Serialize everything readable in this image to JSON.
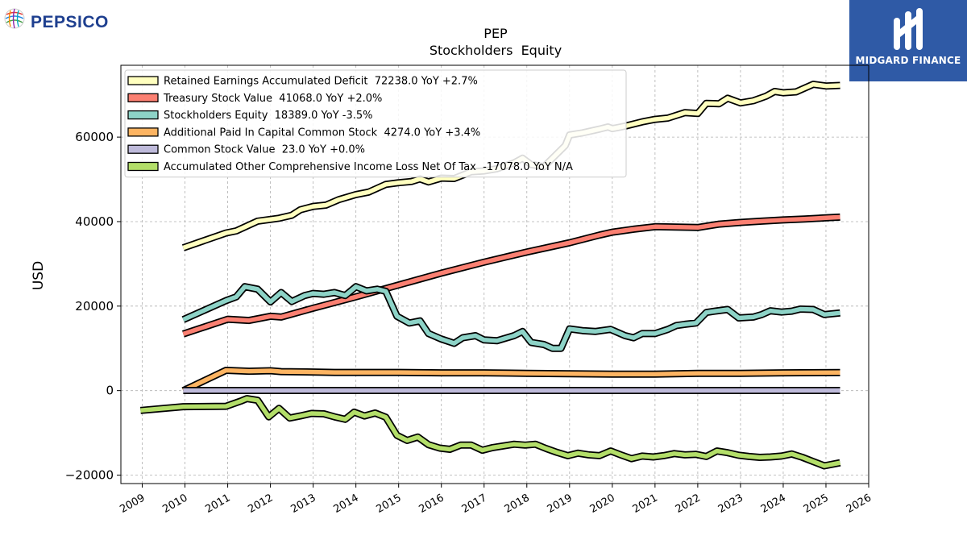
{
  "logos": {
    "left_brand": "PEPSICO",
    "right_brand": "MIDGARD FINANCE"
  },
  "chart_data": {
    "type": "line",
    "title": "PEP",
    "subtitle": "Stockholders  Equity",
    "xlabel": "",
    "ylabel": "USD",
    "xlim": [
      2008.5,
      2026.0
    ],
    "ylim": [
      -22000,
      77000
    ],
    "x_ticks": [
      2009,
      2010,
      2011,
      2012,
      2013,
      2014,
      2015,
      2016,
      2017,
      2018,
      2019,
      2020,
      2021,
      2022,
      2023,
      2024,
      2025,
      2026
    ],
    "y_ticks": [
      -20000,
      0,
      20000,
      40000,
      60000
    ],
    "y_tick_labels": [
      "−20000",
      "0",
      "20000",
      "40000",
      "60000"
    ],
    "grid": true,
    "legend_position": "top-left",
    "series": [
      {
        "name": "Retained Earnings Accumulated Deficit  72238.0 YoY +2.7%",
        "color": "#ffffbf",
        "points": [
          [
            2009.96,
            33800
          ],
          [
            2010.96,
            37300
          ],
          [
            2011.2,
            37800
          ],
          [
            2011.7,
            40100
          ],
          [
            2012.2,
            40800
          ],
          [
            2012.5,
            41500
          ],
          [
            2012.7,
            42800
          ],
          [
            2013.0,
            43600
          ],
          [
            2013.3,
            43900
          ],
          [
            2013.6,
            45200
          ],
          [
            2014.0,
            46400
          ],
          [
            2014.3,
            47000
          ],
          [
            2014.7,
            48800
          ],
          [
            2015.0,
            49200
          ],
          [
            2015.3,
            49500
          ],
          [
            2015.5,
            50100
          ],
          [
            2015.7,
            49400
          ],
          [
            2016.0,
            50300
          ],
          [
            2016.3,
            50200
          ],
          [
            2016.7,
            51800
          ],
          [
            2017.0,
            52000
          ],
          [
            2017.3,
            52500
          ],
          [
            2017.7,
            53900
          ],
          [
            2017.9,
            55000
          ],
          [
            2018.1,
            53500
          ],
          [
            2018.4,
            53000
          ],
          [
            2018.7,
            56000
          ],
          [
            2018.9,
            58000
          ],
          [
            2019.0,
            60500
          ],
          [
            2019.3,
            61000
          ],
          [
            2019.7,
            61900
          ],
          [
            2019.9,
            62400
          ],
          [
            2020.0,
            62000
          ],
          [
            2020.3,
            62600
          ],
          [
            2020.7,
            63600
          ],
          [
            2021.0,
            64200
          ],
          [
            2021.3,
            64500
          ],
          [
            2021.7,
            65800
          ],
          [
            2022.0,
            65600
          ],
          [
            2022.2,
            68000
          ],
          [
            2022.5,
            67900
          ],
          [
            2022.7,
            69200
          ],
          [
            2023.0,
            68100
          ],
          [
            2023.3,
            68600
          ],
          [
            2023.6,
            69700
          ],
          [
            2023.8,
            70800
          ],
          [
            2024.0,
            70500
          ],
          [
            2024.3,
            70700
          ],
          [
            2024.7,
            72500
          ],
          [
            2025.0,
            72100
          ],
          [
            2025.33,
            72238
          ]
        ]
      },
      {
        "name": "Treasury Stock Value  41068.0 YoY +2.0%",
        "color": "#fb8072",
        "points": [
          [
            2009.96,
            13400
          ],
          [
            2011.0,
            16900
          ],
          [
            2011.5,
            16600
          ],
          [
            2012.0,
            17600
          ],
          [
            2012.25,
            17400
          ],
          [
            2013.0,
            19500
          ],
          [
            2014.0,
            22200
          ],
          [
            2015.0,
            25000
          ],
          [
            2016.0,
            27800
          ],
          [
            2017.0,
            30400
          ],
          [
            2018.0,
            32800
          ],
          [
            2019.0,
            35000
          ],
          [
            2019.7,
            36800
          ],
          [
            2020.0,
            37500
          ],
          [
            2020.5,
            38200
          ],
          [
            2021.0,
            38800
          ],
          [
            2021.5,
            38700
          ],
          [
            2022.0,
            38600
          ],
          [
            2022.5,
            39400
          ],
          [
            2023.0,
            39800
          ],
          [
            2023.5,
            40100
          ],
          [
            2024.0,
            40400
          ],
          [
            2024.5,
            40600
          ],
          [
            2025.0,
            40900
          ],
          [
            2025.33,
            41068
          ]
        ]
      },
      {
        "name": "Stockholders Equity  18389.0 YoY -3.5%",
        "color": "#8dd3c7",
        "points": [
          [
            2009.96,
            16800
          ],
          [
            2010.96,
            21300
          ],
          [
            2011.2,
            22200
          ],
          [
            2011.4,
            24600
          ],
          [
            2011.7,
            24000
          ],
          [
            2012.0,
            21000
          ],
          [
            2012.25,
            23200
          ],
          [
            2012.5,
            21100
          ],
          [
            2012.8,
            22500
          ],
          [
            2013.0,
            23000
          ],
          [
            2013.25,
            22800
          ],
          [
            2013.5,
            23200
          ],
          [
            2013.75,
            22500
          ],
          [
            2014.0,
            24600
          ],
          [
            2014.25,
            23600
          ],
          [
            2014.5,
            24000
          ],
          [
            2014.7,
            23500
          ],
          [
            2014.96,
            17600
          ],
          [
            2015.25,
            16000
          ],
          [
            2015.5,
            16500
          ],
          [
            2015.7,
            13500
          ],
          [
            2016.0,
            12200
          ],
          [
            2016.3,
            11200
          ],
          [
            2016.5,
            12500
          ],
          [
            2016.8,
            13000
          ],
          [
            2017.0,
            12000
          ],
          [
            2017.3,
            11800
          ],
          [
            2017.7,
            13000
          ],
          [
            2017.9,
            14000
          ],
          [
            2018.1,
            11400
          ],
          [
            2018.4,
            10900
          ],
          [
            2018.6,
            10000
          ],
          [
            2018.8,
            10000
          ],
          [
            2019.0,
            14600
          ],
          [
            2019.3,
            14200
          ],
          [
            2019.6,
            14000
          ],
          [
            2019.96,
            14500
          ],
          [
            2020.3,
            13000
          ],
          [
            2020.5,
            12500
          ],
          [
            2020.7,
            13500
          ],
          [
            2021.0,
            13500
          ],
          [
            2021.3,
            14500
          ],
          [
            2021.5,
            15400
          ],
          [
            2021.7,
            15700
          ],
          [
            2021.96,
            16000
          ],
          [
            2022.2,
            18500
          ],
          [
            2022.4,
            18800
          ],
          [
            2022.7,
            19200
          ],
          [
            2022.96,
            17200
          ],
          [
            2023.3,
            17400
          ],
          [
            2023.5,
            18000
          ],
          [
            2023.7,
            18900
          ],
          [
            2023.96,
            18600
          ],
          [
            2024.2,
            18800
          ],
          [
            2024.4,
            19300
          ],
          [
            2024.7,
            19200
          ],
          [
            2024.96,
            18000
          ],
          [
            2025.33,
            18389
          ]
        ]
      },
      {
        "name": "Additional Paid In Capital Common Stock  4274.0 YoY +3.4%",
        "color": "#fdb462",
        "points": [
          [
            2009.96,
            0
          ],
          [
            2010.96,
            4800
          ],
          [
            2011.5,
            4600
          ],
          [
            2012.0,
            4700
          ],
          [
            2012.25,
            4500
          ],
          [
            2013.0,
            4400
          ],
          [
            2013.5,
            4300
          ],
          [
            2014.0,
            4300
          ],
          [
            2015.0,
            4300
          ],
          [
            2016.0,
            4200
          ],
          [
            2017.0,
            4200
          ],
          [
            2018.0,
            4100
          ],
          [
            2019.0,
            4000
          ],
          [
            2020.0,
            3900
          ],
          [
            2021.0,
            3900
          ],
          [
            2022.0,
            4100
          ],
          [
            2023.0,
            4100
          ],
          [
            2024.0,
            4200
          ],
          [
            2025.33,
            4274
          ]
        ]
      },
      {
        "name": "Common Stock Value  23.0 YoY +0.0%",
        "color": "#bebada",
        "points": [
          [
            2009.96,
            23
          ],
          [
            2025.33,
            23
          ]
        ]
      },
      {
        "name": "Accumulated Other Comprehensive Income Loss Net Of Tax  -17078.0 YoY N/A",
        "color": "#b3de69",
        "points": [
          [
            2008.96,
            -4700
          ],
          [
            2009.96,
            -3800
          ],
          [
            2010.96,
            -3700
          ],
          [
            2011.3,
            -2500
          ],
          [
            2011.45,
            -1900
          ],
          [
            2011.7,
            -2300
          ],
          [
            2011.96,
            -6200
          ],
          [
            2012.2,
            -4200
          ],
          [
            2012.45,
            -6500
          ],
          [
            2012.7,
            -6000
          ],
          [
            2012.96,
            -5400
          ],
          [
            2013.25,
            -5500
          ],
          [
            2013.5,
            -6200
          ],
          [
            2013.75,
            -6800
          ],
          [
            2013.96,
            -5100
          ],
          [
            2014.2,
            -6000
          ],
          [
            2014.45,
            -5300
          ],
          [
            2014.7,
            -6300
          ],
          [
            2014.96,
            -10600
          ],
          [
            2015.2,
            -11800
          ],
          [
            2015.45,
            -11000
          ],
          [
            2015.7,
            -12800
          ],
          [
            2015.96,
            -13600
          ],
          [
            2016.2,
            -13900
          ],
          [
            2016.45,
            -12900
          ],
          [
            2016.7,
            -12900
          ],
          [
            2016.96,
            -14100
          ],
          [
            2017.2,
            -13500
          ],
          [
            2017.45,
            -13100
          ],
          [
            2017.7,
            -12700
          ],
          [
            2017.96,
            -12900
          ],
          [
            2018.2,
            -12700
          ],
          [
            2018.45,
            -13700
          ],
          [
            2018.7,
            -14600
          ],
          [
            2018.96,
            -15400
          ],
          [
            2019.2,
            -14800
          ],
          [
            2019.45,
            -15200
          ],
          [
            2019.7,
            -15400
          ],
          [
            2019.96,
            -14300
          ],
          [
            2020.2,
            -15200
          ],
          [
            2020.45,
            -16100
          ],
          [
            2020.7,
            -15500
          ],
          [
            2020.96,
            -15700
          ],
          [
            2021.2,
            -15400
          ],
          [
            2021.45,
            -14900
          ],
          [
            2021.7,
            -15200
          ],
          [
            2021.96,
            -15100
          ],
          [
            2022.2,
            -15600
          ],
          [
            2022.45,
            -14300
          ],
          [
            2022.7,
            -14700
          ],
          [
            2022.96,
            -15300
          ],
          [
            2023.2,
            -15600
          ],
          [
            2023.45,
            -15800
          ],
          [
            2023.7,
            -15700
          ],
          [
            2023.96,
            -15500
          ],
          [
            2024.2,
            -15000
          ],
          [
            2024.45,
            -15800
          ],
          [
            2024.7,
            -16800
          ],
          [
            2024.96,
            -17800
          ],
          [
            2025.33,
            -17078
          ]
        ]
      }
    ]
  }
}
